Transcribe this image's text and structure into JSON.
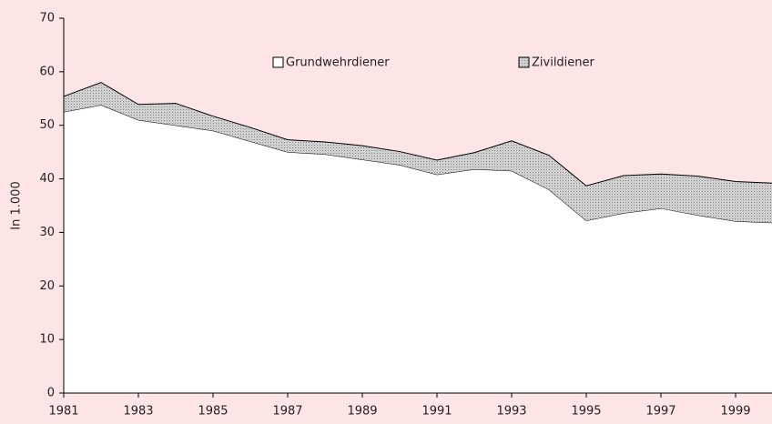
{
  "chart_data": {
    "type": "stacked_area",
    "y_label": "In 1.000",
    "x": [
      1981,
      1982,
      1983,
      1984,
      1985,
      1986,
      1987,
      1988,
      1989,
      1990,
      1991,
      1992,
      1993,
      1994,
      1995,
      1996,
      1997,
      1998,
      1999,
      2000
    ],
    "series": [
      {
        "name": "Grundwehrdiener",
        "color": "#ffffff",
        "values": [
          52.5,
          53.8,
          51,
          50,
          49,
          47,
          45,
          44.6,
          43.6,
          42.6,
          40.8,
          41.8,
          41.5,
          38,
          32.2,
          33.6,
          34.5,
          33.2,
          32.1,
          31.8
        ]
      },
      {
        "name": "Zivildiener",
        "color": "#c8c8c8",
        "values": [
          2.9,
          4.2,
          2.9,
          4.1,
          2.7,
          2.6,
          2.3,
          2.3,
          2.6,
          2.5,
          2.7,
          3.1,
          5.6,
          6.4,
          6.5,
          7.0,
          6.4,
          7.3,
          7.4,
          7.4
        ]
      }
    ],
    "xlim": [
      1981,
      2000
    ],
    "xticks": [
      1981,
      1983,
      1985,
      1987,
      1989,
      1991,
      1993,
      1995,
      1997,
      1999
    ],
    "ylim": [
      0,
      70
    ],
    "yticks": [
      0,
      10,
      20,
      30,
      40,
      50,
      60,
      70
    ]
  }
}
